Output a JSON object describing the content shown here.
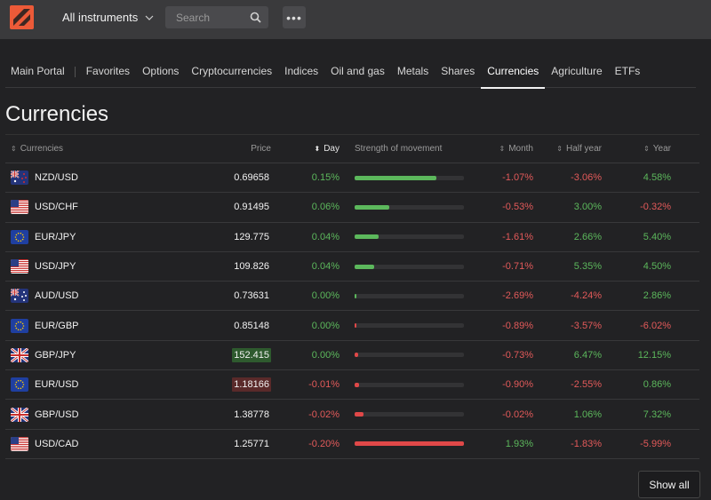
{
  "header": {
    "instrument_selector": "All instruments",
    "search_placeholder": "Search",
    "more_label": "•••"
  },
  "tabs": [
    {
      "label": "Main Portal"
    },
    {
      "label": "Favorites"
    },
    {
      "label": "Options"
    },
    {
      "label": "Cryptocurrencies"
    },
    {
      "label": "Indices"
    },
    {
      "label": "Oil and gas"
    },
    {
      "label": "Metals"
    },
    {
      "label": "Shares"
    },
    {
      "label": "Currencies",
      "active": true
    },
    {
      "label": "Agriculture"
    },
    {
      "label": "ETFs"
    }
  ],
  "page_title": "Currencies",
  "table": {
    "columns": {
      "name": "Currencies",
      "price": "Price",
      "day": "Day",
      "strength": "Strength of movement",
      "month": "Month",
      "half_year": "Half year",
      "year": "Year"
    },
    "rows": [
      {
        "symbol": "NZD/USD",
        "flag": "nz-flag-icon",
        "price": "0.69658",
        "price_hl": "",
        "day": "0.15%",
        "strength": 0.75,
        "strength_dir": "pos",
        "month": "-1.07%",
        "half": "-3.06%",
        "year": "4.58%"
      },
      {
        "symbol": "USD/CHF",
        "flag": "us-flag-icon",
        "price": "0.91495",
        "price_hl": "",
        "day": "0.06%",
        "strength": 0.32,
        "strength_dir": "pos",
        "month": "-0.53%",
        "half": "3.00%",
        "year": "-0.32%"
      },
      {
        "symbol": "EUR/JPY",
        "flag": "eu-flag-icon",
        "price": "129.775",
        "price_hl": "",
        "day": "0.04%",
        "strength": 0.22,
        "strength_dir": "pos",
        "month": "-1.61%",
        "half": "2.66%",
        "year": "5.40%"
      },
      {
        "symbol": "USD/JPY",
        "flag": "us-flag-icon",
        "price": "109.826",
        "price_hl": "",
        "day": "0.04%",
        "strength": 0.18,
        "strength_dir": "pos",
        "month": "-0.71%",
        "half": "5.35%",
        "year": "4.50%"
      },
      {
        "symbol": "AUD/USD",
        "flag": "au-flag-icon",
        "price": "0.73631",
        "price_hl": "",
        "day": "0.00%",
        "strength": 0.02,
        "strength_dir": "pos",
        "month": "-2.69%",
        "half": "-4.24%",
        "year": "2.86%"
      },
      {
        "symbol": "EUR/GBP",
        "flag": "eu-flag-icon",
        "price": "0.85148",
        "price_hl": "",
        "day": "0.00%",
        "strength": 0.02,
        "strength_dir": "neg",
        "month": "-0.89%",
        "half": "-3.57%",
        "year": "-6.02%"
      },
      {
        "symbol": "GBP/JPY",
        "flag": "gb-flag-icon",
        "price": "152.415",
        "price_hl": "up",
        "day": "0.00%",
        "strength": 0.03,
        "strength_dir": "neg",
        "month": "-0.73%",
        "half": "6.47%",
        "year": "12.15%"
      },
      {
        "symbol": "EUR/USD",
        "flag": "eu-flag-icon",
        "price": "1.18166",
        "price_hl": "down",
        "day": "-0.01%",
        "strength": 0.04,
        "strength_dir": "neg",
        "month": "-0.90%",
        "half": "-2.55%",
        "year": "0.86%"
      },
      {
        "symbol": "GBP/USD",
        "flag": "gb-flag-icon",
        "price": "1.38778",
        "price_hl": "",
        "day": "-0.02%",
        "strength": 0.08,
        "strength_dir": "neg",
        "month": "-0.02%",
        "half": "1.06%",
        "year": "7.32%"
      },
      {
        "symbol": "USD/CAD",
        "flag": "us-flag-icon",
        "price": "1.25771",
        "price_hl": "",
        "day": "-0.20%",
        "strength": 1.0,
        "strength_dir": "neg",
        "month": "1.93%",
        "half": "-1.83%",
        "year": "-5.99%"
      }
    ]
  },
  "show_all_label": "Show all",
  "colors": {
    "positive": "#5cb85c",
    "negative": "#e35a5a",
    "brand": "#ec5a38"
  }
}
